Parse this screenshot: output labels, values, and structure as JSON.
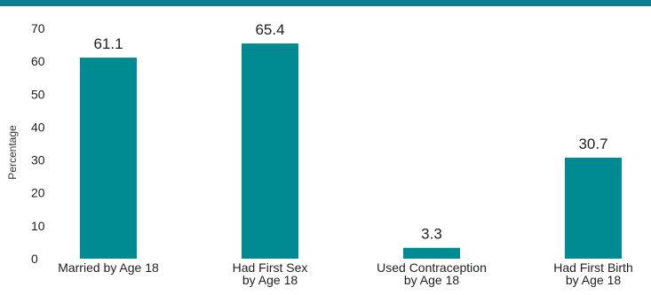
{
  "colors": {
    "bar": "#008b92",
    "top_band": "#0b7f8f"
  },
  "chart_data": {
    "type": "bar",
    "ylabel": "Percentage",
    "ylim": [
      0,
      70
    ],
    "yticks": [
      0,
      10,
      20,
      30,
      40,
      50,
      60,
      70
    ],
    "categories": [
      [
        "Married by Age 18"
      ],
      [
        "Had First Sex",
        "by Age 18"
      ],
      [
        "Used Contraception",
        "by Age 18"
      ],
      [
        "Had First Birth",
        "by Age 18"
      ]
    ],
    "values": [
      61.1,
      65.4,
      3.3,
      30.7
    ],
    "value_labels": [
      "61.1",
      "65.4",
      "3.3",
      "30.7"
    ],
    "grid": false,
    "legend": "none"
  }
}
